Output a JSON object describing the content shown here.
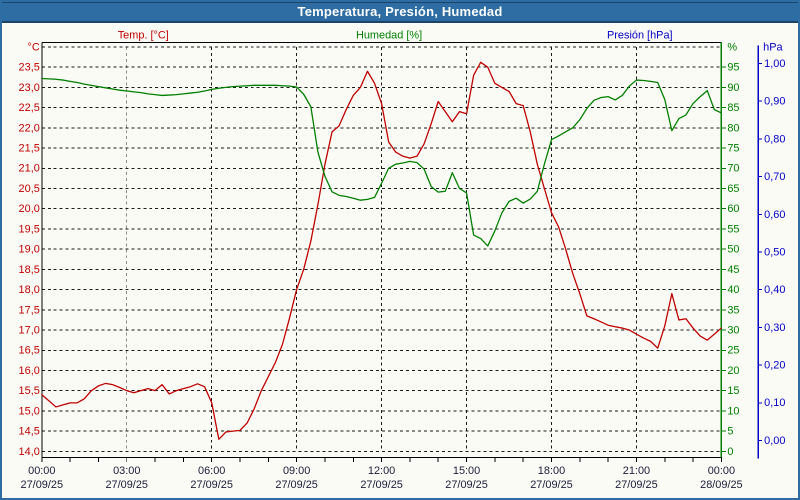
{
  "title_bar": {
    "text": "Temperatura, Presión, Humedad",
    "bg_color": "#2d6da4",
    "text_color": "#ffffff"
  },
  "legend": {
    "temperature": {
      "label": "Temp. [°C]",
      "color": "#c00000"
    },
    "humidity": {
      "label": "Humedad [%]",
      "color": "#008000"
    },
    "pressure": {
      "label": "Presión [hPa]",
      "color": "#0000c8"
    }
  },
  "chart_data": {
    "type": "line",
    "background": "#fbfbf5",
    "grid": {
      "style": "dashed",
      "horizontal_step_temp_c": 0.5,
      "vertical_step_hours": 3,
      "color": "#1a1a1a"
    },
    "x_axis": {
      "range_hours": [
        0,
        24
      ],
      "minor_tick_every_hours": 1,
      "label_every_hours": 3,
      "label_color": "#1b1b3b",
      "labels": [
        {
          "time": "00:00",
          "date": "27/09/25"
        },
        {
          "time": "03:00",
          "date": "27/09/25"
        },
        {
          "time": "06:00",
          "date": "27/09/25"
        },
        {
          "time": "09:00",
          "date": "27/09/25"
        },
        {
          "time": "12:00",
          "date": "27/09/25"
        },
        {
          "time": "15:00",
          "date": "27/09/25"
        },
        {
          "time": "18:00",
          "date": "27/09/25"
        },
        {
          "time": "21:00",
          "date": "27/09/25"
        },
        {
          "time": "00:00",
          "date": "28/09/25"
        }
      ]
    },
    "y_axis_temperature": {
      "unit": "°C",
      "color": "#c00000",
      "min": 14.0,
      "max": 24.0,
      "step": 0.5,
      "tick_labels": [
        "23,5",
        "23,0",
        "22,5",
        "22,0",
        "21,5",
        "21,0",
        "20,5",
        "20,0",
        "19,5",
        "19,0",
        "18,5",
        "18,0",
        "17,5",
        "17,0",
        "16,5",
        "16,0",
        "15,5",
        "15,0",
        "14,5",
        "14,0"
      ],
      "tick_values": [
        23.5,
        23.0,
        22.5,
        22.0,
        21.5,
        21.0,
        20.5,
        20.0,
        19.5,
        19.0,
        18.5,
        18.0,
        17.5,
        17.0,
        16.5,
        16.0,
        15.5,
        15.0,
        14.5,
        14.0
      ]
    },
    "y_axis_humidity": {
      "unit": "%",
      "color": "#008000",
      "min": 0,
      "max": 100,
      "step": 5,
      "tick_labels": [
        "95",
        "90",
        "85",
        "80",
        "75",
        "70",
        "65",
        "60",
        "55",
        "50",
        "45",
        "40",
        "35",
        "30",
        "25",
        "20",
        "15",
        "10",
        "5",
        "0"
      ],
      "tick_values": [
        95,
        90,
        85,
        80,
        75,
        70,
        65,
        60,
        55,
        50,
        45,
        40,
        35,
        30,
        25,
        20,
        15,
        10,
        5,
        0
      ]
    },
    "y_axis_pressure": {
      "unit": "hPa",
      "color": "#0000c8",
      "min": 0.0,
      "max": 1.0,
      "step": 0.1,
      "tick_labels": [
        "1,00",
        "0,90",
        "0,80",
        "0,70",
        "0,60",
        "0,50",
        "0,40",
        "0,30",
        "0,20",
        "0,10",
        "0,00"
      ],
      "tick_values": [
        1.0,
        0.9,
        0.8,
        0.7,
        0.6,
        0.5,
        0.4,
        0.3,
        0.2,
        0.1,
        0.0
      ]
    },
    "sample_step_hours": 0.25,
    "series": [
      {
        "name": "Temp. [°C]",
        "axis": "temperature",
        "color": "#c00000",
        "visible": true,
        "values": [
          15.4,
          15.25,
          15.1,
          15.15,
          15.2,
          15.2,
          15.3,
          15.5,
          15.62,
          15.68,
          15.65,
          15.58,
          15.5,
          15.45,
          15.5,
          15.55,
          15.5,
          15.65,
          15.42,
          15.5,
          15.55,
          15.6,
          15.67,
          15.6,
          15.2,
          14.3,
          14.48,
          14.5,
          14.52,
          14.7,
          15.05,
          15.5,
          15.85,
          16.2,
          16.65,
          17.3,
          18.0,
          18.5,
          19.2,
          20.1,
          21.1,
          21.9,
          22.05,
          22.45,
          22.8,
          23.0,
          23.4,
          23.1,
          22.6,
          21.65,
          21.4,
          21.3,
          21.25,
          21.3,
          21.6,
          22.1,
          22.65,
          22.4,
          22.15,
          22.4,
          22.35,
          23.3,
          23.62,
          23.5,
          23.1,
          23.0,
          22.9,
          22.6,
          22.55,
          21.9,
          21.1,
          20.5,
          19.9,
          19.55,
          19.0,
          18.4,
          17.9,
          17.35,
          17.28,
          17.2,
          17.12,
          17.08,
          17.05,
          17.0,
          16.9,
          16.8,
          16.72,
          16.55,
          17.1,
          17.9,
          17.25,
          17.28,
          17.05,
          16.85,
          16.75,
          16.9,
          17.05
        ]
      },
      {
        "name": "Humedad [%]",
        "axis": "humidity",
        "color": "#008000",
        "visible": true,
        "values": [
          92.2,
          92.1,
          92.0,
          91.8,
          91.5,
          91.2,
          90.8,
          90.5,
          90.2,
          89.9,
          89.6,
          89.3,
          89.1,
          88.9,
          88.7,
          88.4,
          88.2,
          88.0,
          88.1,
          88.2,
          88.4,
          88.6,
          88.8,
          89.1,
          89.5,
          89.8,
          90.0,
          90.2,
          90.3,
          90.4,
          90.5,
          90.5,
          90.5,
          90.5,
          90.4,
          90.3,
          90.1,
          88.3,
          85.2,
          74.0,
          68.0,
          64.2,
          63.3,
          63.0,
          62.6,
          62.1,
          62.3,
          62.8,
          66.3,
          70.0,
          71.0,
          71.3,
          71.7,
          71.4,
          69.8,
          65.5,
          64.1,
          64.3,
          68.9,
          65.0,
          63.9,
          53.5,
          52.6,
          50.8,
          54.5,
          59.0,
          61.8,
          62.6,
          61.4,
          62.4,
          64.3,
          71.0,
          77.1,
          78.0,
          79.0,
          80.0,
          82.0,
          84.8,
          86.8,
          87.5,
          87.7,
          86.9,
          88.0,
          90.3,
          91.8,
          91.7,
          91.5,
          91.2,
          87.0,
          79.3,
          82.3,
          83.2,
          86.0,
          87.7,
          89.2,
          84.5,
          83.7
        ]
      },
      {
        "name": "Presión [hPa]",
        "axis": "pressure",
        "color": "#0000c8",
        "visible": false,
        "values": []
      }
    ]
  }
}
